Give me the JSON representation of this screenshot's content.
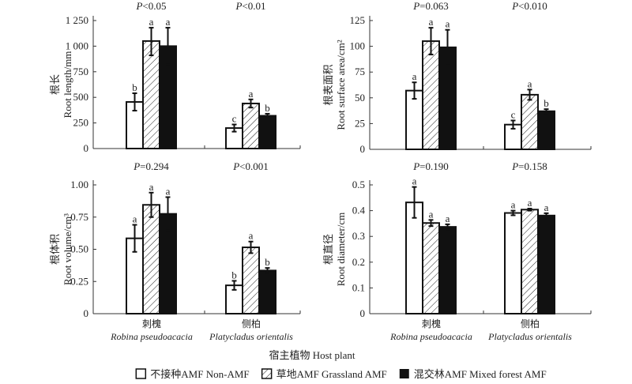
{
  "chart_data": [
    {
      "type": "bar",
      "ylabel_cn": "根长",
      "ylabel": "Root length/mm",
      "ylim": [
        0,
        1250
      ],
      "yticks": [
        0,
        250,
        500,
        750,
        1000,
        1250
      ],
      "ytick_labels": [
        "0",
        "250",
        "500",
        "750",
        "1 000",
        "1 250"
      ],
      "categories": [
        "Robina pseudoacacia",
        "Platycladus orientalis"
      ],
      "p_values": [
        {
          "pre": "P",
          "post": "<0.05"
        },
        {
          "pre": "P",
          "post": "<0.01"
        }
      ],
      "series": [
        {
          "name": "不接种AMF Non-AMF",
          "values": [
            455,
            200
          ],
          "err_low": [
            370,
            165
          ],
          "err_high": [
            540,
            235
          ],
          "letters": [
            "b",
            "c"
          ]
        },
        {
          "name": "草地AMF Grassland AMF",
          "values": [
            1050,
            440
          ],
          "err_low": [
            910,
            400
          ],
          "err_high": [
            1180,
            480
          ],
          "letters": [
            "a",
            "a"
          ]
        },
        {
          "name": "混交林AMF Mixed forest AMF",
          "values": [
            1000,
            320
          ],
          "err_low": [
            820,
            300
          ],
          "err_high": [
            1180,
            340
          ],
          "letters": [
            "a",
            "b"
          ]
        }
      ]
    },
    {
      "type": "bar",
      "ylabel_cn": "根表面积",
      "ylabel": "Root surface area/cm²",
      "ylim": [
        0,
        125
      ],
      "yticks": [
        0,
        25,
        50,
        75,
        100,
        125
      ],
      "ytick_labels": [
        "0",
        "25",
        "50",
        "75",
        "100",
        "125"
      ],
      "categories": [
        "Robina pseudoacacia",
        "Platycladus orientalis"
      ],
      "p_values": [
        {
          "pre": "P",
          "post": "=0.063"
        },
        {
          "pre": "P",
          "post": "<0.010"
        }
      ],
      "series": [
        {
          "name": "不接种AMF Non-AMF",
          "values": [
            57,
            24
          ],
          "err_low": [
            49,
            20
          ],
          "err_high": [
            65,
            28
          ],
          "letters": [
            "a",
            "c"
          ]
        },
        {
          "name": "草地AMF Grassland AMF",
          "values": [
            105,
            53
          ],
          "err_low": [
            92,
            48
          ],
          "err_high": [
            118,
            58
          ],
          "letters": [
            "a",
            "a"
          ]
        },
        {
          "name": "混交林AMF Mixed forest AMF",
          "values": [
            99,
            37
          ],
          "err_low": [
            82,
            35
          ],
          "err_high": [
            116,
            39
          ],
          "letters": [
            "a",
            "b"
          ]
        }
      ]
    },
    {
      "type": "bar",
      "ylabel_cn": "根体积",
      "ylabel": "Root volume/cm³",
      "ylim": [
        0,
        1.0
      ],
      "yticks": [
        0,
        0.25,
        0.5,
        0.75,
        1.0
      ],
      "ytick_labels": [
        "0",
        "0.25",
        "0.50",
        "0.75",
        "1.00"
      ],
      "categories": [
        "Robina pseudoacacia",
        "Platycladus orientalis"
      ],
      "p_values": [
        {
          "pre": "P",
          "post": "=0.294"
        },
        {
          "pre": "P",
          "post": "<0.001"
        }
      ],
      "series": [
        {
          "name": "不接种AMF Non-AMF",
          "values": [
            0.585,
            0.22
          ],
          "err_low": [
            0.48,
            0.185
          ],
          "err_high": [
            0.69,
            0.255
          ],
          "letters": [
            "a",
            "b"
          ]
        },
        {
          "name": "草地AMF Grassland AMF",
          "values": [
            0.845,
            0.515
          ],
          "err_low": [
            0.75,
            0.47
          ],
          "err_high": [
            0.94,
            0.56
          ],
          "letters": [
            "a",
            "a"
          ]
        },
        {
          "name": "混交林AMF Mixed forest AMF",
          "values": [
            0.775,
            0.335
          ],
          "err_low": [
            0.645,
            0.315
          ],
          "err_high": [
            0.905,
            0.355
          ],
          "letters": [
            "a",
            "b"
          ]
        }
      ]
    },
    {
      "type": "bar",
      "ylabel_cn": "根直径",
      "ylabel": "Root diameter/cm",
      "ylim": [
        0,
        0.5
      ],
      "yticks": [
        0,
        0.1,
        0.2,
        0.3,
        0.4,
        0.5
      ],
      "ytick_labels": [
        "0",
        "0.1",
        "0.2",
        "0.3",
        "0.4",
        "0.5"
      ],
      "categories": [
        "Robina pseudoacacia",
        "Platycladus orientalis"
      ],
      "p_values": [
        {
          "pre": "P",
          "post": "=0.190"
        },
        {
          "pre": "P",
          "post": "=0.158"
        }
      ],
      "series": [
        {
          "name": "不接种AMF Non-AMF",
          "values": [
            0.432,
            0.391
          ],
          "err_low": [
            0.372,
            0.382
          ],
          "err_high": [
            0.492,
            0.4
          ],
          "letters": [
            "a",
            "a"
          ]
        },
        {
          "name": "草地AMF Grassland AMF",
          "values": [
            0.352,
            0.404
          ],
          "err_low": [
            0.34,
            0.4
          ],
          "err_high": [
            0.364,
            0.408
          ],
          "letters": [
            "a",
            "a"
          ]
        },
        {
          "name": "混交林AMF Mixed forest AMF",
          "values": [
            0.337,
            0.381
          ],
          "err_low": [
            0.327,
            0.372
          ],
          "err_high": [
            0.347,
            0.39
          ],
          "letters": [
            "a",
            "a"
          ]
        }
      ]
    }
  ],
  "x_categories": [
    {
      "cn": "刺槐",
      "latin": "Robina pseudoacacia"
    },
    {
      "cn": "侧柏",
      "latin": "Platycladus orientalis"
    }
  ],
  "xlabel": "宿主植物 Host plant",
  "legend": [
    {
      "label": "不接种AMF Non-AMF",
      "fill": "white"
    },
    {
      "label": "草地AMF Grassland AMF",
      "fill": "hatched"
    },
    {
      "label": "混交林AMF Mixed forest AMF",
      "fill": "#111111"
    }
  ],
  "legend_position": "bottom"
}
